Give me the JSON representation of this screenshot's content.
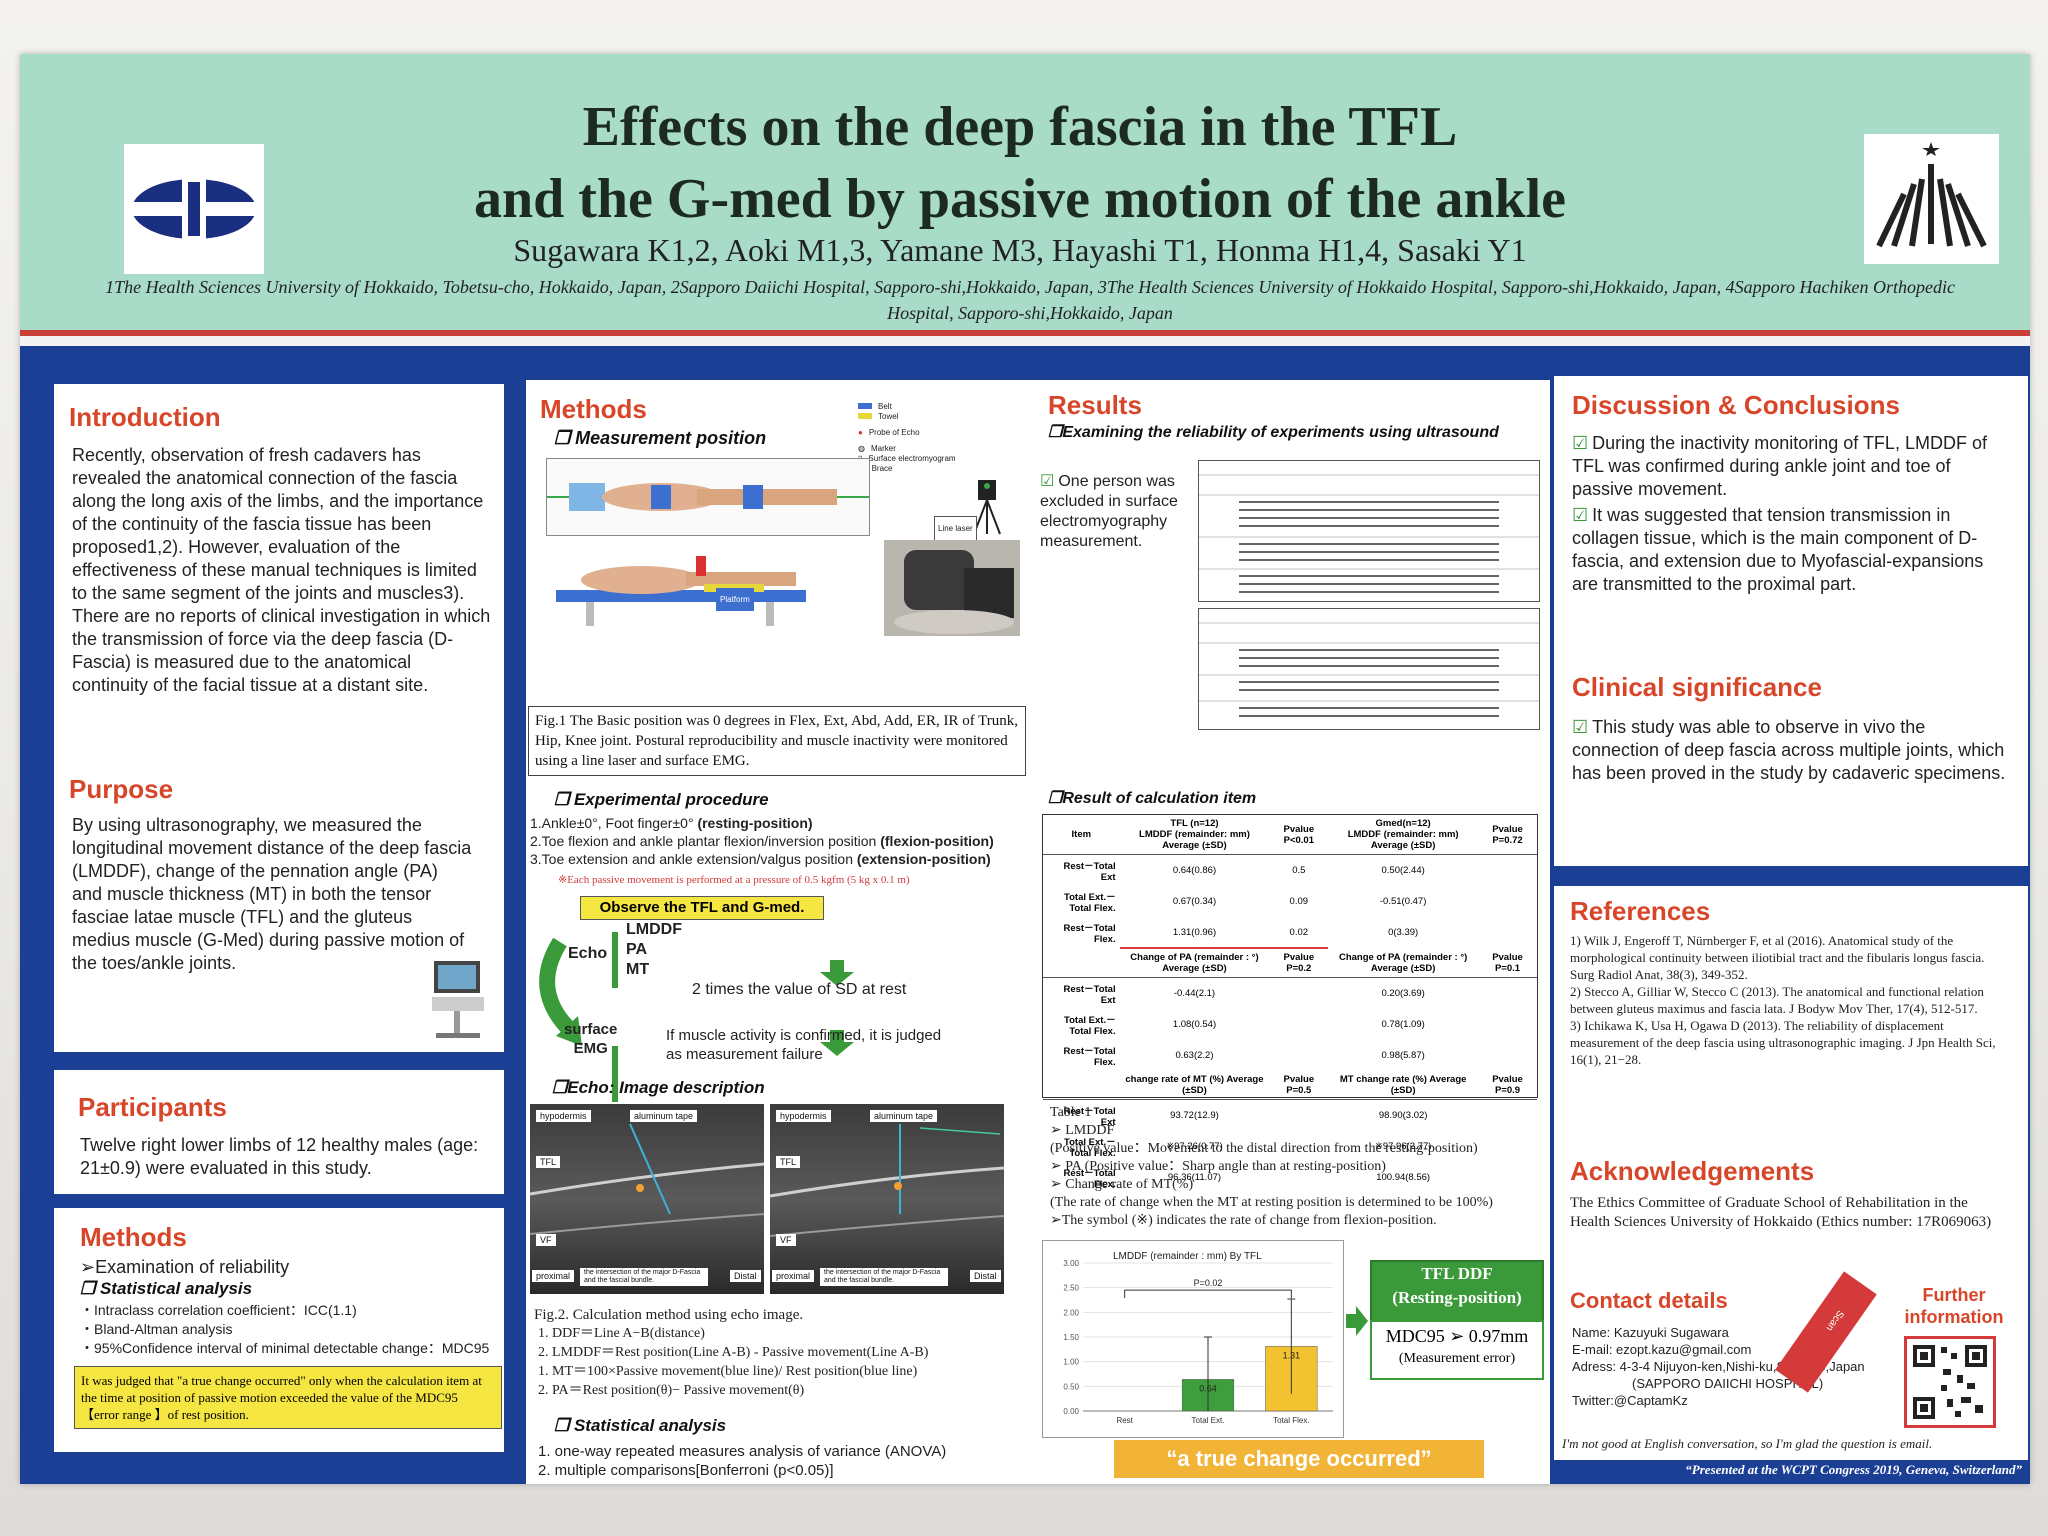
{
  "header": {
    "title_line1": "Effects on the deep fascia in the TFL",
    "title_line2": "and the G-med by passive motion of the ankle",
    "authors": "Sugawara K1,2,  Aoki M1,3,  Yamane M3, Hayashi T1,  Honma H1,4, Sasaki Y1",
    "affiliations": "1The Health Sciences University of Hokkaido, Tobetsu-cho, Hokkaido, Japan, 2Sapporo Daiichi Hospital, Sapporo-shi,Hokkaido, Japan, 3The Health Sciences University of Hokkaido Hospital, Sapporo-shi,Hokkaido, Japan, 4Sapporo Hachiken Orthopedic Hospital, Sapporo-shi,Hokkaido, Japan"
  },
  "introduction": {
    "heading": "Introduction",
    "text": "Recently, observation of fresh cadavers has revealed the anatomical connection of the fascia along the long axis of the limbs, and the importance of the continuity of the fascia tissue has been proposed1,2). However, evaluation of the effectiveness of these manual techniques is limited to the same segment of the joints and muscles3). There are no reports of clinical investigation in which the transmission of force via the deep fascia (D-Fascia) is measured due to the anatomical continuity of the facial tissue at a distant site."
  },
  "purpose": {
    "heading": "Purpose",
    "text": "By using ultrasonography, we measured the longitudinal movement distance of the deep fascia (LMDDF), change of the pennation angle (PA) and muscle thickness (MT) in both the tensor fasciae latae muscle (TFL) and the gluteus medius muscle (G-Med) during passive motion of the toes/ankle joints."
  },
  "participants": {
    "heading": "Participants",
    "text": "Twelve right lower limbs of 12 healthy males (age: 21±0.9) were evaluated in this study."
  },
  "methods_left": {
    "heading": "Methods",
    "line1": "➢Examination of reliability",
    "sub": "❒ Statistical analysis",
    "items": [
      "・Intraclass correlation coefficient：ICC(1.1)",
      "・Bland-Altman analysis",
      "・95%Confidence interval of minimal detectable change：MDC95"
    ],
    "note": "It was judged that \"a true change occurred\" only when the calculation item at the time at position of passive motion exceeded the value of the MDC95【error range 】of rest position."
  },
  "methods_mid": {
    "heading": "Methods",
    "measurement_sub": "❒ Measurement position",
    "legend": [
      "Belt",
      "Towel",
      "Probe of Echo",
      "Marker",
      "Surface electromyogram",
      "Brace"
    ],
    "line_laser": "Line laser",
    "platform": "Platform",
    "fig1": "Fig.1   The Basic position was 0 degrees in Flex, Ext, Abd, Add, ER, IR of Trunk, Hip, Knee joint. Postural reproducibility and muscle inactivity were monitored using a line laser and surface EMG.",
    "exp_sub": "❒ Experimental procedure",
    "exp1": "1.Ankle±0°,  Foot finger±0°",
    "exp1b": "(resting-position)",
    "exp2": "2.Toe flexion and ankle plantar flexion/inversion position",
    "exp2b": "(flexion-position)",
    "exp3": "3.Toe extension and ankle extension/valgus position",
    "exp3b": "(extension-position)",
    "exp_note": "※Each passive movement is performed at a pressure of 0.5 kgfm (5 kg x 0.1 m)",
    "observe": "Observe the TFL and G-med.",
    "echo_label": "Echo",
    "echo_items": [
      "LMDDF",
      "PA",
      "MT"
    ],
    "sd_text": "2 times the value of SD at rest",
    "emg_label1": "surface",
    "emg_label2": "EMG",
    "emg_text1": "If muscle activity is confirmed, it is judged",
    "emg_text2": "as measurement failure",
    "echo_sub": "❒Echo: Image description",
    "echo_labels": [
      "hypodermis",
      "aluminum tape",
      "TFL",
      "VF",
      "proximal",
      "Distal",
      "the intersection of the major D-Fascia and the fascial bundle."
    ],
    "fig2": "Fig.2. Calculation method using echo image.",
    "fig2_items": [
      "1.  DDF＝Line A−B(distance)",
      "2.  LMDDF＝Rest position(Line A-B) - Passive movement(Line A-B)",
      "1.  MT＝100×Passive movement(blue line)/ Rest position(blue line)",
      "2.  PA＝Rest position(θ)− Passive movement(θ)"
    ],
    "stat_sub": "❒ Statistical analysis",
    "stat_items": [
      "1.  one-way repeated measures analysis of variance (ANOVA)",
      "2.  multiple comparisons[Bonferroni (p<0.05)]"
    ]
  },
  "results": {
    "heading": "Results",
    "rel_sub": "❒Examining the reliability of experiments using ultrasound",
    "excluded": "One person was excluded in surface electromyography measurement.",
    "calc_sub": "❒Result of calculation item",
    "table1": {
      "h1": [
        "Item",
        "TFL (n=12)",
        "Pvalue P<0.01",
        "Gmed(n=12)",
        "Pvalue P=0.72"
      ],
      "h1b": [
        "LMDDF (remainder: mm) Average (±SD)",
        "LMDDF (remainder: mm) Average (±SD)"
      ],
      "rows1": [
        [
          "Rest－Total Ext",
          "0.64(0.86)",
          "0.5",
          "0.50(2.44)"
        ],
        [
          "Total Ext.－Total Flex.",
          "0.67(0.34)",
          "0.09",
          "-0.51(0.47)"
        ],
        [
          "Rest－Total Flex.",
          "1.31(0.96)",
          "0.02",
          "0(3.39)"
        ]
      ],
      "h2": [
        "Change of PA (remainder : °) Average (±SD)",
        "Pvalue P=0.2",
        "Change of PA (remainder : °) Average (±SD)",
        "Pvalue P=0.1"
      ],
      "rows2": [
        [
          "Rest－Total Ext",
          "-0.44(2.1)",
          "0.20(3.69)"
        ],
        [
          "Total Ext.－Total Flex.",
          "1.08(0.54)",
          "0.78(1.09)"
        ],
        [
          "Rest－Total Flex.",
          "0.63(2.2)",
          "0.98(5.87)"
        ]
      ],
      "h3": [
        "change rate of MT (%) Average (±SD)",
        "Pvalue P=0.5",
        "MT change rate (%) Average (±SD)",
        "Pvalue P=0.9"
      ],
      "rows3": [
        [
          "Rest－Total Ext",
          "93.72(12.9)",
          "98.90(3.02)"
        ],
        [
          "Total Ext.－Total Flex.",
          "※97.26(0.77)",
          "※97.96(2.77)"
        ],
        [
          "Rest－Total Flex.",
          "96.36(11.07)",
          "100.94(8.56)"
        ]
      ]
    },
    "table_notes": [
      "Table 1",
      "➢ LMDDF",
      "(Positive value：Movement to the distal direction from the resting-position)",
      "➢ PA (Positive value：Sharp angle than at resting-position)",
      "➢ Change rate of MT(%)",
      "(The rate of change when the MT at resting position is determined to be 100%)",
      "➢The symbol (※) indicates the rate of change from flexion-position."
    ],
    "tfl_box_line1": "TFL DDF",
    "tfl_box_line2": "(Resting-position)",
    "mdc_label": "MDC95 ➢",
    "mdc_value": "0.97mm",
    "mdc_note": "(Measurement error)",
    "true_change": "“a true change occurred”"
  },
  "chart_data": {
    "type": "bar",
    "title": "LMDDF (remainder : mm) By TFL",
    "categories": [
      "Rest",
      "Total Ext.",
      "Total Flex."
    ],
    "values": [
      0,
      0.64,
      1.31
    ],
    "errors": [
      0,
      0.86,
      0.96
    ],
    "bar_labels": [
      "",
      "0.64",
      "1.31"
    ],
    "yticks": [
      "0.00",
      "0.50",
      "1.00",
      "1.50",
      "2.00",
      "2.50",
      "3.00"
    ],
    "ylim": [
      0,
      3
    ],
    "annotation": "P=0.02",
    "colors": [
      "#ffffff",
      "#3e9e3e",
      "#f2c230"
    ]
  },
  "discussion": {
    "heading": "Discussion & Conclusions",
    "items": [
      "During the inactivity monitoring of TFL, LMDDF of TFL was confirmed during ankle joint and toe of passive movement.",
      "It was suggested that tension transmission in collagen tissue, which is the main component of D-fascia, and extension due to Myofascial-expansions are transmitted to the proximal part."
    ]
  },
  "clinical": {
    "heading": "Clinical significance",
    "text": "This study was able to observe in vivo the connection of deep fascia across multiple joints, which has been proved in the study by cadaveric specimens."
  },
  "references": {
    "heading": "References",
    "items": [
      "1) Wilk J, Engeroff T, Nürnberger F, et al (2016). Anatomical study of the morphological continuity between iliotibial tract and the fibularis longus fascia. Surg Radiol Anat, 38(3), 349-352.",
      "2) Stecco A, Gilliar W, Stecco C (2013). The anatomical and functional relation between gluteus maximus and fascia lata. J Bodyw Mov Ther, 17(4), 512-517.",
      "3) Ichikawa K, Usa H, Ogawa D (2013). The reliability of displacement measurement of the deep fascia using ultrasonographic imaging. J Jpn Health Sci, 16(1), 21−28."
    ]
  },
  "acknowledgements": {
    "heading": "Acknowledgements",
    "text": "The Ethics Committee of Graduate School of Rehabilitation in the Health Sciences University of Hokkaido (Ethics number: 17R069063)"
  },
  "contact": {
    "heading": "Contact details",
    "further": "Further information",
    "scan": "Scan",
    "lines": [
      "Name: Kazuyuki Sugawara",
      "E-mail: ezopt.kazu@gmail.com",
      "Adress: 4-3-4 Nijuyon-ken,Nishi-ku,Sapporo,Japan",
      "(SAPPORO DAIICHI HOSPITAL)",
      "Twitter:@CaptamKz"
    ],
    "note": "I'm not good at English conversation, so I'm glad the question is email."
  },
  "footer": "“Presented at the WCPT Congress 2019, Geneva, Switzerland”"
}
